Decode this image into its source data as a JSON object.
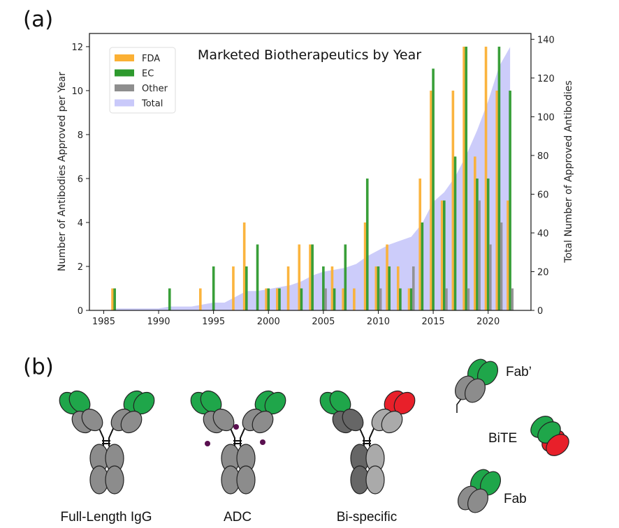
{
  "panel_labels": {
    "a": "(a)",
    "b": "(b)"
  },
  "chart_data": {
    "type": "bar",
    "title": "Marketed Biotherapeutics by Year",
    "xlabel": "",
    "ylabel": "Number of Antibodies Approved per Year",
    "ylabel_right": "Total Number of Approved Antibodies",
    "xlim": [
      1983.7,
      2023.9
    ],
    "ylim": [
      0,
      12.6
    ],
    "ylim_right": [
      0,
      143
    ],
    "xticks": [
      1985,
      1990,
      1995,
      2000,
      2005,
      2010,
      2015,
      2020
    ],
    "yticks": [
      0,
      2,
      4,
      6,
      8,
      10,
      12
    ],
    "yticks_right": [
      0,
      20,
      40,
      60,
      80,
      100,
      120,
      140
    ],
    "legend_position": "top-left",
    "colors": {
      "FDA": "#fbb034",
      "EC": "#2e9a2e",
      "Other": "#8e8e8e",
      "Total": "#c9c9fa"
    },
    "x": [
      1986,
      1987,
      1988,
      1989,
      1990,
      1991,
      1992,
      1993,
      1994,
      1995,
      1996,
      1997,
      1998,
      1999,
      2000,
      2001,
      2002,
      2003,
      2004,
      2005,
      2006,
      2007,
      2008,
      2009,
      2010,
      2011,
      2012,
      2013,
      2014,
      2015,
      2016,
      2017,
      2018,
      2019,
      2020,
      2021,
      2022
    ],
    "series": [
      {
        "name": "FDA",
        "values": [
          1,
          0,
          0,
          0,
          0,
          0,
          0,
          0,
          1,
          0,
          0,
          2,
          4,
          0,
          1,
          1,
          2,
          3,
          3,
          0,
          2,
          1,
          1,
          4,
          2,
          3,
          2,
          1,
          6,
          10,
          5,
          10,
          12,
          7,
          12,
          10,
          5
        ]
      },
      {
        "name": "EC",
        "values": [
          1,
          0,
          0,
          0,
          0,
          1,
          0,
          0,
          0,
          2,
          0,
          0,
          2,
          3,
          1,
          1,
          0,
          1,
          3,
          2,
          1,
          3,
          0,
          6,
          2,
          2,
          1,
          1,
          4,
          11,
          5,
          7,
          12,
          6,
          6,
          12,
          10
        ]
      },
      {
        "name": "Other",
        "values": [
          0,
          0,
          0,
          0,
          0,
          0,
          0,
          0,
          0,
          0,
          0,
          0,
          0,
          0,
          0,
          0,
          0,
          0,
          0,
          1,
          0,
          0,
          0,
          0,
          1,
          0,
          0,
          2,
          0,
          0,
          1,
          0,
          1,
          5,
          3,
          4,
          1
        ]
      },
      {
        "name": "Total",
        "type": "area",
        "values": [
          1,
          1,
          1,
          1,
          1,
          2,
          2,
          2,
          3,
          4,
          4,
          7,
          10,
          10,
          11,
          12,
          13,
          15,
          18,
          20,
          21,
          22,
          24,
          28,
          31,
          34,
          36,
          38,
          45,
          56,
          61,
          69,
          80,
          93,
          108,
          126,
          136
        ]
      }
    ]
  },
  "diagram": {
    "labels": [
      "Full-Length IgG",
      "ADC",
      "Bi-specific",
      "Fab’",
      "BiTE",
      "Fab"
    ]
  }
}
